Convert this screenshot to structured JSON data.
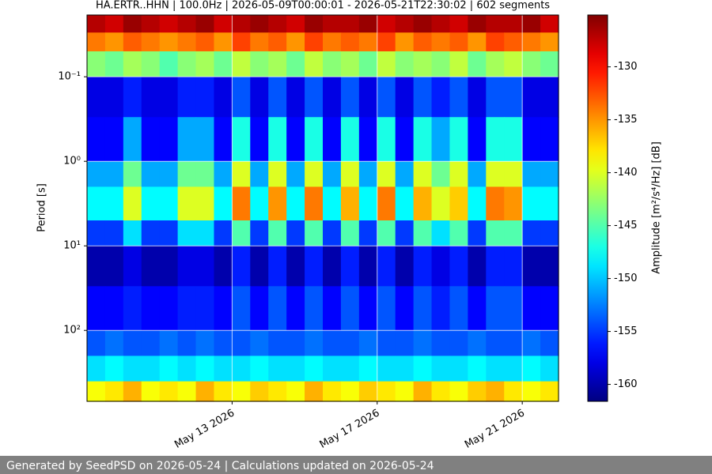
{
  "chart_data": {
    "type": "heatmap",
    "title": "HA.ERTR..HHN | 100.0Hz | 2026-05-09T00:00:01 - 2026-05-21T22:30:02 | 602 segments",
    "ylabel": "Period [s]",
    "colorbar_label": "Amplitude [m²/s⁴/Hz] [dB]",
    "colormap": "jet",
    "log_y": true,
    "grid": true,
    "xlim": [
      "2026-05-09",
      "2026-05-22"
    ],
    "xticks": [
      {
        "value": "2026-05-13",
        "label": "May 13 2026"
      },
      {
        "value": "2026-05-17",
        "label": "May 17 2026"
      },
      {
        "value": "2026-05-21",
        "label": "May 21 2026"
      }
    ],
    "ylim": [
      690,
      0.0186
    ],
    "yticks": [
      {
        "value": 0.1,
        "label": "10⁻¹"
      },
      {
        "value": 1,
        "label": "10⁰"
      },
      {
        "value": 10,
        "label": "10¹"
      },
      {
        "value": 100,
        "label": "10²"
      }
    ],
    "clim": [
      -161.6,
      -125.1
    ],
    "cticks": [
      -130,
      -135,
      -140,
      -145,
      -150,
      -155,
      -160
    ],
    "y_edges": [
      0.0186,
      0.03,
      0.05,
      0.1,
      0.3,
      1,
      2,
      5,
      10,
      30,
      100,
      200,
      400,
      690
    ],
    "z": [
      [
        -127,
        -128,
        -126,
        -127,
        -128,
        -127,
        -126,
        -128,
        -127,
        -126,
        -127,
        -128,
        -126,
        -127,
        -127,
        -126,
        -128,
        -127,
        -126,
        -127,
        -128,
        -126,
        -127,
        -127,
        -126,
        -128
      ],
      [
        -134,
        -135,
        -133,
        -134,
        -135,
        -134,
        -133,
        -135,
        -132,
        -134,
        -133,
        -135,
        -132,
        -134,
        -133,
        -134,
        -132,
        -135,
        -133,
        -134,
        -133,
        -135,
        -132,
        -133,
        -134,
        -135
      ],
      [
        -143,
        -144,
        -142,
        -143,
        -145,
        -143,
        -142,
        -144,
        -141,
        -143,
        -142,
        -144,
        -141,
        -143,
        -142,
        -144,
        -141,
        -143,
        -142,
        -143,
        -141,
        -144,
        -142,
        -141,
        -143,
        -144
      ],
      [
        -158,
        -158,
        -156,
        -158,
        -158,
        -156,
        -156,
        -158,
        -154,
        -158,
        -154,
        -158,
        -154,
        -158,
        -154,
        -158,
        -154,
        -158,
        -154,
        -156,
        -154,
        -158,
        -154,
        -154,
        -158,
        -158
      ],
      [
        -157,
        -157,
        -151,
        -157,
        -157,
        -151,
        -151,
        -157,
        -147,
        -157,
        -147,
        -157,
        -147,
        -157,
        -147,
        -157,
        -147,
        -157,
        -147,
        -151,
        -147,
        -157,
        -147,
        -147,
        -157,
        -157
      ],
      [
        -151,
        -151,
        -144,
        -151,
        -151,
        -144,
        -144,
        -151,
        -140,
        -151,
        -140,
        -151,
        -140,
        -151,
        -140,
        -151,
        -140,
        -151,
        -140,
        -144,
        -140,
        -151,
        -140,
        -140,
        -151,
        -151
      ],
      [
        -148,
        -148,
        -140,
        -148,
        -148,
        -140,
        -140,
        -148,
        -134,
        -148,
        -135,
        -148,
        -134,
        -148,
        -136,
        -148,
        -134,
        -148,
        -136,
        -140,
        -137,
        -148,
        -134,
        -135,
        -148,
        -148
      ],
      [
        -155,
        -155,
        -149,
        -155,
        -155,
        -149,
        -149,
        -155,
        -145,
        -155,
        -145,
        -155,
        -145,
        -155,
        -145,
        -155,
        -145,
        -155,
        -145,
        -149,
        -145,
        -155,
        -145,
        -145,
        -155,
        -155
      ],
      [
        -160,
        -160,
        -158,
        -160,
        -160,
        -158,
        -158,
        -160,
        -156,
        -160,
        -156,
        -160,
        -156,
        -160,
        -156,
        -160,
        -156,
        -160,
        -156,
        -158,
        -156,
        -160,
        -156,
        -156,
        -160,
        -160
      ],
      [
        -157,
        -157,
        -156,
        -157,
        -157,
        -156,
        -156,
        -157,
        -154,
        -157,
        -154,
        -157,
        -154,
        -157,
        -154,
        -157,
        -154,
        -157,
        -154,
        -156,
        -154,
        -157,
        -154,
        -154,
        -157,
        -157
      ],
      [
        -154,
        -153,
        -154,
        -154,
        -153,
        -154,
        -153,
        -154,
        -154,
        -153,
        -154,
        -154,
        -153,
        -154,
        -154,
        -153,
        -154,
        -154,
        -153,
        -154,
        -154,
        -153,
        -154,
        -154,
        -153,
        -154
      ],
      [
        -149,
        -148,
        -149,
        -149,
        -148,
        -149,
        -148,
        -149,
        -149,
        -148,
        -149,
        -149,
        -148,
        -149,
        -149,
        -148,
        -149,
        -149,
        -148,
        -149,
        -149,
        -148,
        -149,
        -149,
        -148,
        -149
      ],
      [
        -139,
        -138,
        -136,
        -139,
        -138,
        -139,
        -136,
        -138,
        -139,
        -137,
        -138,
        -139,
        -136,
        -138,
        -139,
        -137,
        -138,
        -139,
        -136,
        -138,
        -139,
        -137,
        -136,
        -138,
        -139,
        -138
      ]
    ],
    "footer": "Generated by SeedPSD on 2026-05-24 | Calculations updated on 2026-05-24"
  }
}
